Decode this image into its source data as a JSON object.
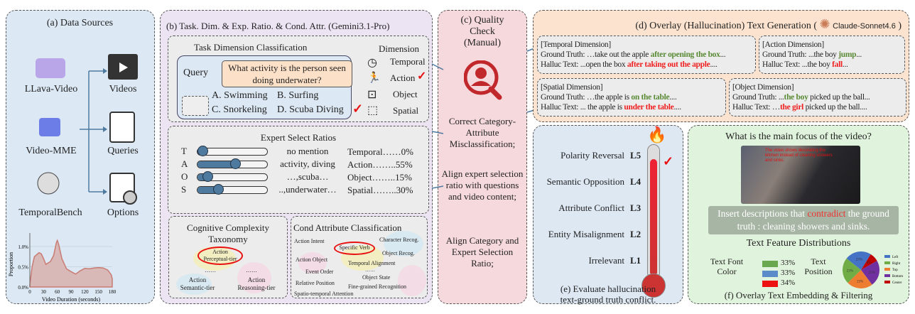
{
  "colors": {
    "panel_a": "#dce9f5",
    "panel_b": "#ece3f3",
    "panel_c": "#f6d9dc",
    "panel_d": "#fbe3cf",
    "panel_e": "#dde8f3",
    "panel_f": "#e0f3dc",
    "ground_truth": "#5a8a35",
    "halluc": "#f02020",
    "accent_blue": "#4e7aa0"
  },
  "a": {
    "title": "(a) Data Sources",
    "sources": [
      "LLava-Video",
      "Video-MME",
      "TemporalBench"
    ],
    "outputs": [
      "Videos",
      "Queries",
      "Options"
    ],
    "chart_data": {
      "type": "area",
      "xlabel": "Video Duration (seconds)",
      "ylabel": "Proportion",
      "xticks": [
        "0",
        "30",
        "60",
        "90",
        "120",
        "150",
        "180"
      ],
      "yticks": [
        "0.0%",
        "0.5%",
        "1.0%"
      ],
      "xlim": [
        0,
        180
      ],
      "ylim": [
        0,
        1.3
      ],
      "grid": "horizontal",
      "x": [
        0,
        5,
        10,
        20,
        25,
        30,
        35,
        45,
        52,
        58,
        60,
        63,
        70,
        80,
        90,
        100,
        110,
        120,
        130,
        140,
        150,
        160,
        170,
        178,
        180
      ],
      "y": [
        0.05,
        0.5,
        0.75,
        0.85,
        0.82,
        0.7,
        0.56,
        0.63,
        0.78,
        1.1,
        1.15,
        1.05,
        0.7,
        0.45,
        0.38,
        0.32,
        0.4,
        0.46,
        0.45,
        0.47,
        0.48,
        0.47,
        0.42,
        0.3,
        0.2
      ],
      "color": "#c97b72"
    }
  },
  "b": {
    "title": "(b) Task. Dim. & Exp. Ratio. & Cond. Attr. (Gemini3.1-Pro)",
    "tdc": {
      "title": "Task Dimension Classification",
      "query_label": "Query",
      "query": "What activity is the person seen doing underwater?",
      "options": [
        "A. Swimming",
        "B. Surfing",
        "C. Snorkeling",
        "D. Scuba Diving"
      ],
      "dim_title": "Dimension",
      "dims": [
        "Temporal",
        "Action",
        "Object",
        "Spatial"
      ]
    },
    "esr": {
      "title": "Expert Select Ratios",
      "rows": [
        {
          "letter": "T",
          "keyword": "no mention",
          "label": "Temporal……0%",
          "value": 0
        },
        {
          "letter": "A",
          "keyword": "activity, diving",
          "label": "Action……..55%",
          "value": 55
        },
        {
          "letter": "O",
          "keyword": "…,scuba…",
          "label": "Object……..15%",
          "value": 15
        },
        {
          "letter": "S",
          "keyword": "..,underwater…",
          "label": "Spatial……..30%",
          "value": 30
        }
      ]
    },
    "cct": {
      "title1": "Cognitive Complexity",
      "title2": "Taxonomy",
      "perceptual": [
        "Action",
        "Perceptual-tier"
      ],
      "semantic": [
        "Action",
        "Semantic-tier"
      ],
      "reasoning": [
        "Action",
        "Reasoning-tier"
      ],
      "dots": "……"
    },
    "cac": {
      "title": "Cond Attribute Classification",
      "items": [
        "Action Intent",
        "Specific Verb",
        "Character Recog.",
        "Object Recog.",
        "Action Object",
        "Temporal Alignment",
        "Event Order",
        "Object State",
        "Relative Position",
        "Fine-grained Recognition",
        "Spatio-temporal Attention"
      ],
      "dots": "……"
    }
  },
  "c": {
    "title": "(c) Quality Check (Manual)",
    "steps": [
      "Correct Category-Attribute Misclassification;",
      "Align expert selection ratio with questions and video content;",
      "Align Category and Expert Selection Ratio;"
    ]
  },
  "d": {
    "title": "(d) Overlay (Hallucination) Text Generation (",
    "model": "Claude-Sonnet4.6",
    "close": ")",
    "boxes": [
      {
        "head": "[Temporal Dimension]",
        "gt_pre": "Ground Truth: …take out the apple ",
        "gt_hi": "after opening the box",
        "gt_post": "...",
        "ht_pre": "Halluc Text: ...open the box ",
        "ht_hi": "after taking out the apple",
        "ht_post": "...."
      },
      {
        "head": "[Action Dimension]",
        "gt_pre": "Ground Truth: ...the boy ",
        "gt_hi": "jump",
        "gt_post": "...",
        "ht_pre": "Halluc Text: ...the boy ",
        "ht_hi": "fall",
        "ht_post": "..."
      },
      {
        "head": "[Spatial Dimension]",
        "gt_pre": "Ground Truth: …the apple is ",
        "gt_hi": "on the table",
        "gt_post": "....",
        "ht_pre": "Halluc Text: ... the apple is ",
        "ht_hi": "under the table",
        "ht_post": "...."
      },
      {
        "head": "[Object Dimension]",
        "gt_pre": "Ground Truth: ...",
        "gt_hi": "the boy",
        "gt_post": " picked up the ball...",
        "ht_pre": "Halluc Text: …",
        "ht_hi": "the girl",
        "ht_post": " picked up the ball...."
      }
    ]
  },
  "e": {
    "levels": [
      {
        "name": "Polarity Reversal",
        "code": "L5"
      },
      {
        "name": "Semantic Opposition",
        "code": "L4"
      },
      {
        "name": "Attribute Conflict",
        "code": "L3"
      },
      {
        "name": "Entity Misalignment",
        "code": "L2"
      },
      {
        "name": "Irrelevant",
        "code": "L1"
      }
    ],
    "caption1": "(e) Evaluate hallucination",
    "caption2": "text-ground truth conflict."
  },
  "f": {
    "question": "What is the main focus of the video?",
    "overlay_text": "The video shows decorating the kitchen instead of cleaning showers and sinks.",
    "instr_pre": "Insert descriptions that ",
    "instr_hi": "contradict",
    "instr_post": " the ground truth : cleaning showers and sinks.",
    "dist_title": "Text Feature Distributions",
    "font_label1": "Text Font",
    "font_label2": "Color",
    "font_colors": [
      {
        "color": "#6aa84f",
        "pct": "33%"
      },
      {
        "color": "#5b8bc9",
        "pct": "33%"
      },
      {
        "color": "#ee1111",
        "pct": "34%"
      }
    ],
    "pos_label1": "Text",
    "pos_label2": "Position",
    "chart_data": {
      "type": "pie",
      "labels": [
        "Left",
        "Right",
        "Top",
        "Bottom",
        "Center"
      ],
      "values": [
        23,
        23,
        23,
        23,
        8
      ],
      "colors": [
        "#4472c4",
        "#70ad47",
        "#ed7d31",
        "#7030a0",
        "#c00000"
      ],
      "legend": "right"
    },
    "caption": "(f) Overlay Text Embedding & Filtering"
  }
}
